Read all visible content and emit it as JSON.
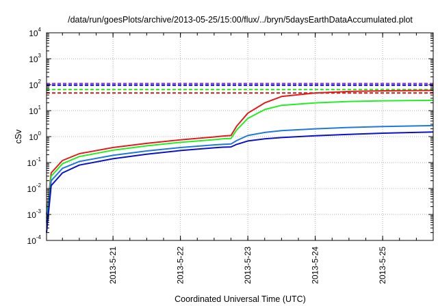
{
  "chart_data": {
    "type": "line",
    "title": "/data/run/goesPlots/archive/2013-05-25/15:00/flux/../bryn/5daysEarthDataAccumulated.plot",
    "xlabel": "Coordinated Universal Time (UTC)",
    "ylabel": "cSv",
    "y_scale": "log",
    "ylim": [
      0.0001,
      10000
    ],
    "xlim": [
      "2013-05-20 00:20",
      "2013-05-25 18:00"
    ],
    "x_ticks": [
      "2013-5-21",
      "2013-5-22",
      "2013-5-23",
      "2013-5-24",
      "2013-5-25"
    ],
    "y_ticks": [
      {
        "base": "10",
        "exp": "-4"
      },
      {
        "base": "10",
        "exp": "-3"
      },
      {
        "base": "10",
        "exp": "-2"
      },
      {
        "base": "10",
        "exp": "-1"
      },
      {
        "base": "10",
        "exp": "0"
      },
      {
        "base": "10",
        "exp": "1"
      },
      {
        "base": "10",
        "exp": "2"
      },
      {
        "base": "10",
        "exp": "3"
      },
      {
        "base": "10",
        "exp": "4"
      }
    ],
    "grid": true,
    "series": [
      {
        "color": "#e31a1c",
        "style": "solid",
        "points": [
          [
            "2013-05-20 00:20",
            0.001
          ],
          [
            "2013-05-20 02:00",
            0.04
          ],
          [
            "2013-05-20 06:00",
            0.12
          ],
          [
            "2013-05-20 12:00",
            0.22
          ],
          [
            "2013-05-21 00:00",
            0.38
          ],
          [
            "2013-05-21 12:00",
            0.55
          ],
          [
            "2013-05-22 00:00",
            0.75
          ],
          [
            "2013-05-22 12:00",
            0.97
          ],
          [
            "2013-05-22 15:00",
            1.05
          ],
          [
            "2013-05-22 18:00",
            1.1
          ],
          [
            "2013-05-22 20:00",
            2.5
          ],
          [
            "2013-05-23 00:00",
            8
          ],
          [
            "2013-05-23 06:00",
            20
          ],
          [
            "2013-05-23 12:00",
            35
          ],
          [
            "2013-05-24 00:00",
            48
          ],
          [
            "2013-05-24 12:00",
            55
          ],
          [
            "2013-05-25 00:00",
            58
          ],
          [
            "2013-05-25 18:00",
            60
          ]
        ]
      },
      {
        "color": "#22ee22",
        "style": "solid",
        "points": [
          [
            "2013-05-20 00:20",
            0.0007
          ],
          [
            "2013-05-20 02:00",
            0.03
          ],
          [
            "2013-05-20 06:00",
            0.09
          ],
          [
            "2013-05-20 12:00",
            0.17
          ],
          [
            "2013-05-21 00:00",
            0.3
          ],
          [
            "2013-05-21 12:00",
            0.44
          ],
          [
            "2013-05-22 00:00",
            0.6
          ],
          [
            "2013-05-22 12:00",
            0.76
          ],
          [
            "2013-05-22 15:00",
            0.82
          ],
          [
            "2013-05-22 18:00",
            0.85
          ],
          [
            "2013-05-22 20:00",
            1.8
          ],
          [
            "2013-05-23 00:00",
            5
          ],
          [
            "2013-05-23 06:00",
            11
          ],
          [
            "2013-05-23 12:00",
            16
          ],
          [
            "2013-05-24 00:00",
            20
          ],
          [
            "2013-05-24 12:00",
            22.5
          ],
          [
            "2013-05-25 00:00",
            24
          ],
          [
            "2013-05-25 18:00",
            25
          ]
        ]
      },
      {
        "color": "#1f77dd",
        "style": "solid",
        "points": [
          [
            "2013-05-20 00:20",
            0.0005
          ],
          [
            "2013-05-20 02:00",
            0.02
          ],
          [
            "2013-05-20 06:00",
            0.06
          ],
          [
            "2013-05-20 12:00",
            0.11
          ],
          [
            "2013-05-21 00:00",
            0.19
          ],
          [
            "2013-05-21 12:00",
            0.28
          ],
          [
            "2013-05-22 00:00",
            0.38
          ],
          [
            "2013-05-22 12:00",
            0.48
          ],
          [
            "2013-05-22 15:00",
            0.5
          ],
          [
            "2013-05-22 18:00",
            0.52
          ],
          [
            "2013-05-22 20:00",
            0.7
          ],
          [
            "2013-05-23 00:00",
            1.1
          ],
          [
            "2013-05-23 06:00",
            1.45
          ],
          [
            "2013-05-23 12:00",
            1.7
          ],
          [
            "2013-05-24 00:00",
            2.0
          ],
          [
            "2013-05-24 12:00",
            2.25
          ],
          [
            "2013-05-25 00:00",
            2.45
          ],
          [
            "2013-05-25 18:00",
            2.65
          ]
        ]
      },
      {
        "color": "#0a10c8",
        "style": "solid",
        "points": [
          [
            "2013-05-20 00:20",
            0.0002
          ],
          [
            "2013-05-20 02:00",
            0.013
          ],
          [
            "2013-05-20 06:00",
            0.04
          ],
          [
            "2013-05-20 12:00",
            0.08
          ],
          [
            "2013-05-21 00:00",
            0.14
          ],
          [
            "2013-05-21 12:00",
            0.21
          ],
          [
            "2013-05-22 00:00",
            0.29
          ],
          [
            "2013-05-22 12:00",
            0.37
          ],
          [
            "2013-05-22 15:00",
            0.39
          ],
          [
            "2013-05-22 18:00",
            0.4
          ],
          [
            "2013-05-22 20:00",
            0.5
          ],
          [
            "2013-05-23 00:00",
            0.68
          ],
          [
            "2013-05-23 06:00",
            0.82
          ],
          [
            "2013-05-23 12:00",
            0.92
          ],
          [
            "2013-05-24 00:00",
            1.08
          ],
          [
            "2013-05-24 12:00",
            1.22
          ],
          [
            "2013-05-25 00:00",
            1.35
          ],
          [
            "2013-05-25 18:00",
            1.5
          ]
        ]
      },
      {
        "color": "#8a2be2",
        "style": "dashed",
        "points": [
          [
            "2013-05-20 00:20",
            110
          ],
          [
            "2013-05-25 18:00",
            110
          ]
        ]
      },
      {
        "color": "#0a10c8",
        "style": "dashed",
        "points": [
          [
            "2013-05-20 00:20",
            95
          ],
          [
            "2013-05-25 18:00",
            95
          ]
        ]
      },
      {
        "color": "#22ee22",
        "style": "dashed",
        "points": [
          [
            "2013-05-20 00:20",
            65
          ],
          [
            "2013-05-25 18:00",
            65
          ]
        ]
      },
      {
        "color": "#e31a1c",
        "style": "dashed",
        "points": [
          [
            "2013-05-20 00:20",
            48
          ],
          [
            "2013-05-25 18:00",
            48
          ]
        ]
      }
    ]
  }
}
